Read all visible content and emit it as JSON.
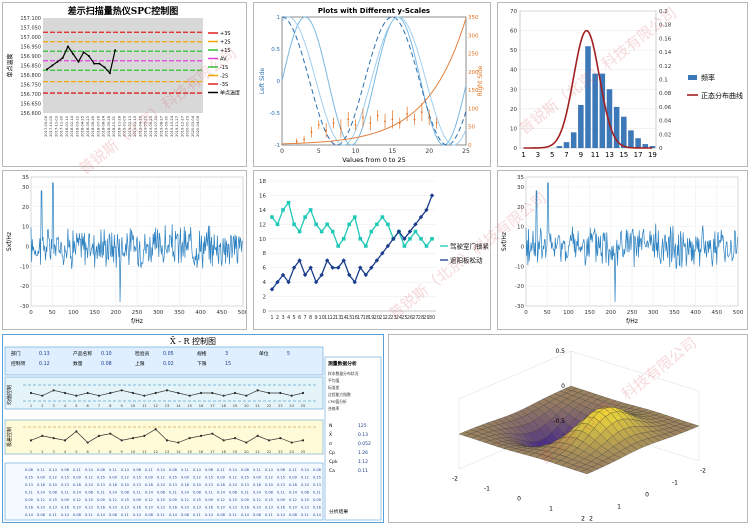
{
  "watermark_text": "普锐斯（北京）科技有限公司",
  "charts": {
    "spc": {
      "type": "line",
      "title": "差示扫描量热仪SPC控制图",
      "ylabel": "单点温度",
      "ylim": [
        156.6,
        157.1
      ],
      "yticks": [
        "157.100",
        "157.050",
        "157.000",
        "156.950",
        "156.900",
        "156.850",
        "156.800",
        "156.750",
        "156.700",
        "156.650",
        "156.600"
      ],
      "xticks": [
        "2017-09-06",
        "2017-10-05",
        "2017-11-03",
        "2017-11-30",
        "2018-01-10",
        "2018-02-14",
        "2018-03-22",
        "2018-04-25",
        "2018-05-23",
        "2018-06-26",
        "2018-07-26",
        "2018-08-24",
        "2018-09-26",
        "2018-10-31",
        "2018-11-28",
        "2019-01-09",
        "2019-02-13",
        "2019-03-19",
        "2019-04-16",
        "2019-05-22",
        "2019-06-25",
        "2019-07-30",
        "2019-08-27",
        "2019-09-30",
        "2019-10-24",
        "2019-11-27",
        "2019-12-27",
        "2020-01-29",
        "2020-03-04",
        "2020-04-08"
      ],
      "limits": [
        {
          "label": "+3S",
          "value": 157.025,
          "color": "#e02020"
        },
        {
          "label": "+2S",
          "value": 156.975,
          "color": "#f0a800"
        },
        {
          "label": "+1S",
          "value": 156.925,
          "color": "#30c030"
        },
        {
          "label": "AV",
          "value": 156.875,
          "color": "#e040e0"
        },
        {
          "label": "-1S",
          "value": 156.825,
          "color": "#30c030"
        },
        {
          "label": "-2S",
          "value": 156.765,
          "color": "#f0a800"
        },
        {
          "label": "-3S",
          "value": 156.705,
          "color": "#e02020"
        }
      ],
      "series": [
        {
          "name": "单点温度",
          "values": [
            156.83,
            156.85,
            156.87,
            156.89,
            156.95,
            156.91,
            156.87,
            156.92,
            156.9,
            156.86,
            156.86,
            156.84,
            156.81,
            156.93
          ]
        }
      ],
      "legend": [
        "+3S",
        "+2S",
        "+1S",
        "AV",
        "-1S",
        "-2S",
        "-3S",
        "单点温度"
      ]
    },
    "dual_axis": {
      "type": "line",
      "title": "Plots with Different y-Scales",
      "xlabel": "Values from 0 to 25",
      "ylabel_left": "Left Side",
      "ylabel_right": "Right Side",
      "xlim": [
        0,
        25
      ],
      "ylim_left": [
        -1,
        1
      ],
      "ylim_right": [
        0,
        350
      ],
      "xticks": [
        "0",
        "5",
        "10",
        "15",
        "20",
        "25"
      ],
      "yticks_left": [
        "1",
        "0.5",
        "0",
        "-0.5",
        "-1"
      ],
      "yticks_right": [
        "350",
        "300",
        "250",
        "200",
        "150",
        "100",
        "50",
        "0"
      ],
      "errorbars": [
        {
          "x": 2,
          "y": 10,
          "e": 8
        },
        {
          "x": 3,
          "y": 15,
          "e": 10
        },
        {
          "x": 4,
          "y": 35,
          "e": 15
        },
        {
          "x": 5,
          "y": 55,
          "e": 12
        },
        {
          "x": 6,
          "y": 40,
          "e": 20
        },
        {
          "x": 7,
          "y": 60,
          "e": 15
        },
        {
          "x": 8,
          "y": 45,
          "e": 25
        },
        {
          "x": 9,
          "y": 70,
          "e": 20
        },
        {
          "x": 10,
          "y": 55,
          "e": 15
        },
        {
          "x": 11,
          "y": 75,
          "e": 25
        },
        {
          "x": 12,
          "y": 60,
          "e": 20
        },
        {
          "x": 13,
          "y": 80,
          "e": 15
        },
        {
          "x": 14,
          "y": 65,
          "e": 20
        },
        {
          "x": 15,
          "y": 70,
          "e": 25
        },
        {
          "x": 16,
          "y": 60,
          "e": 15
        },
        {
          "x": 17,
          "y": 85,
          "e": 20
        },
        {
          "x": 18,
          "y": 70,
          "e": 15
        },
        {
          "x": 19,
          "y": 90,
          "e": 25
        },
        {
          "x": 20,
          "y": 75,
          "e": 20
        },
        {
          "x": 21,
          "y": 60,
          "e": 15
        }
      ]
    },
    "histogram": {
      "type": "bar",
      "categories": [
        "1",
        "2",
        "3",
        "4",
        "5",
        "6",
        "7",
        "8",
        "9",
        "10",
        "11",
        "12",
        "13",
        "14",
        "15",
        "16",
        "17",
        "18",
        "19"
      ],
      "values": [
        0,
        0,
        0,
        0,
        0,
        1,
        3,
        8,
        22,
        52,
        38,
        38,
        30,
        21,
        16,
        9,
        5,
        2,
        1
      ],
      "ylim_left": [
        0,
        70
      ],
      "ylim_right": [
        0,
        0.2
      ],
      "yticks_left": [
        "70",
        "60",
        "50",
        "40",
        "30",
        "20",
        "10",
        "0"
      ],
      "yticks_right": [
        "0.2",
        "0.18",
        "0.16",
        "0.14",
        "0.12",
        "0.1",
        "0.08",
        "0.06",
        "0.04",
        "0.02",
        "0"
      ],
      "xticks_shown": [
        "1",
        "3",
        "5",
        "7",
        "9",
        "11",
        "13",
        "15",
        "17",
        "19"
      ],
      "curve_peak": 60,
      "curve_mean": 9.8,
      "curve_sd": 1.8,
      "legend": [
        "频率",
        "正态分布曲线"
      ]
    },
    "spectrum_left": {
      "type": "line",
      "xlabel": "f/Hz",
      "ylabel": "Sxf/Hz",
      "xlim": [
        0,
        500
      ],
      "ylim": [
        -30,
        35
      ],
      "xticks": [
        "0",
        "50",
        "100",
        "150",
        "200",
        "250",
        "300",
        "350",
        "400",
        "450",
        "500"
      ],
      "yticks": [
        "35",
        "30",
        "20",
        "10",
        "0",
        "-10",
        "-20",
        "-30"
      ]
    },
    "two_series": {
      "type": "line",
      "categories": [
        "1",
        "2",
        "3",
        "4",
        "5",
        "6",
        "7",
        "8",
        "9",
        "10",
        "11",
        "12",
        "13",
        "14",
        "15",
        "16",
        "17",
        "18",
        "19",
        "20",
        "21",
        "22",
        "23",
        "24",
        "25",
        "26",
        "27",
        "28",
        "29",
        "30"
      ],
      "ylim": [
        0,
        18
      ],
      "yticks": [
        "18",
        "16",
        "14",
        "12",
        "10",
        "8",
        "6",
        "4",
        "2",
        "0"
      ],
      "series": [
        {
          "name": "驾驶室门锁紧",
          "color": "#20c8b8",
          "values": [
            13,
            12,
            14,
            15,
            12,
            11,
            13,
            14,
            12,
            11,
            12,
            11,
            9,
            10,
            12,
            13,
            10,
            9,
            11,
            12,
            13,
            12,
            10,
            11,
            9,
            10,
            11,
            10,
            9,
            10
          ]
        },
        {
          "name": "遮阳板松动",
          "color": "#1a3c8c",
          "values": [
            3,
            4,
            5,
            4,
            6,
            7,
            5,
            6,
            4,
            5,
            7,
            6,
            6,
            7,
            5,
            4,
            6,
            5,
            6,
            7,
            8,
            9,
            10,
            11,
            10,
            11,
            12,
            13,
            14,
            16
          ]
        }
      ]
    },
    "spectrum_right": {
      "type": "line",
      "xlabel": "f/Hz",
      "ylabel": "Sxf/Hz",
      "xlim": [
        0,
        500
      ],
      "ylim": [
        -30,
        35
      ],
      "xticks": [
        "0",
        "50",
        "100",
        "150",
        "200",
        "250",
        "300",
        "350",
        "400",
        "450",
        "500"
      ],
      "yticks": [
        "35",
        "30",
        "20",
        "10",
        "0",
        "-10",
        "-20",
        "-30"
      ]
    },
    "surface": {
      "type": "area",
      "xlim": [
        -2,
        2
      ],
      "ylim": [
        -2,
        2
      ],
      "zlim": [
        -0.5,
        0.5
      ],
      "zticks": [
        "0.5",
        "0",
        "-0.5"
      ],
      "xticks": [
        "2",
        "1",
        "0",
        "-1",
        "-2"
      ],
      "yticks": [
        "-2",
        "-1",
        "0",
        "1",
        "2"
      ]
    }
  },
  "xbar_panel": {
    "title": "X̄ - R 控制图",
    "upper_chart_label": "均值控制",
    "lower_chart_label": "极差控制",
    "info_labels": [
      "部门",
      "产品名称",
      "检验员",
      "规格",
      "单位",
      "控制项",
      "数量",
      "上限",
      "下限"
    ],
    "info_values": [
      "0.13",
      "0.10",
      "0.05",
      "3",
      "5",
      "0.12",
      "0.08",
      "0.02",
      "15"
    ],
    "analysis_title": "测量数据分析",
    "analysis_rows": [
      "样本数量分布状况",
      "平均值",
      "标准差",
      "过程能力指数",
      "CPK值分析",
      "合格率"
    ],
    "stats_labels": [
      "N",
      "X̄",
      "σ",
      "Cp",
      "Cpk",
      "Ca"
    ],
    "stats_values": [
      "125",
      "0.13",
      "0.052",
      "1.26",
      "1.12",
      "0.11"
    ],
    "upper_values": [
      0.13,
      0.12,
      0.14,
      0.13,
      0.12,
      0.13,
      0.12,
      0.13,
      0.14,
      0.13,
      0.12,
      0.13,
      0.14,
      0.13,
      0.12,
      0.13,
      0.13,
      0.12,
      0.13,
      0.12,
      0.14,
      0.13,
      0.13,
      0.12,
      0.13
    ],
    "lower_values": [
      0.08,
      0.1,
      0.09,
      0.08,
      0.12,
      0.07,
      0.1,
      0.11,
      0.08,
      0.09,
      0.1,
      0.13,
      0.08,
      0.07,
      0.09,
      0.1,
      0.11,
      0.08,
      0.09,
      0.07,
      0.1,
      0.08,
      0.09,
      0.07,
      0.08
    ],
    "footer_label": "分析结果"
  }
}
